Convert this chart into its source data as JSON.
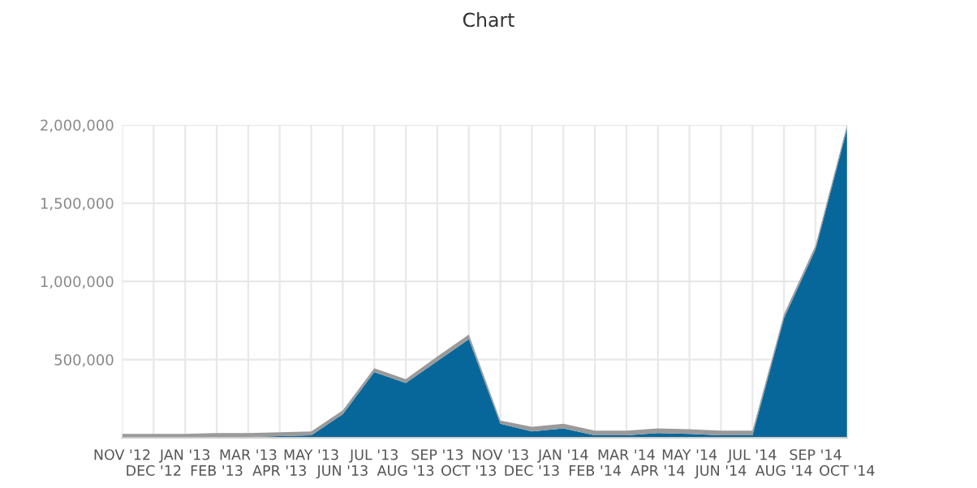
{
  "chart_data": {
    "type": "area",
    "title": "Chart",
    "stacked": true,
    "categories": [
      "NOV '12",
      "DEC '12",
      "JAN '13",
      "FEB '13",
      "MAR '13",
      "APR '13",
      "MAY '13",
      "JUN '13",
      "JUL '13",
      "AUG '13",
      "SEP '13",
      "OCT '13",
      "NOV '13",
      "DEC '13",
      "JAN '14",
      "FEB '14",
      "MAR '14",
      "APR '14",
      "MAY '14",
      "JUN '14",
      "JUL '14",
      "AUG '14",
      "SEP '14",
      "OCT '14"
    ],
    "series": [
      {
        "color": "#08679a",
        "values": [
          0,
          0,
          5000,
          5000,
          5000,
          10000,
          15000,
          150000,
          420000,
          350000,
          490000,
          630000,
          90000,
          40000,
          60000,
          15000,
          15000,
          30000,
          25000,
          15000,
          15000,
          765000,
          1205000,
          1975000
        ]
      },
      {
        "color": "#9a9a9a",
        "values": [
          25000,
          25000,
          20000,
          25000,
          25000,
          25000,
          25000,
          25000,
          25000,
          25000,
          30000,
          30000,
          20000,
          30000,
          30000,
          30000,
          30000,
          30000,
          30000,
          30000,
          30000,
          25000,
          25000,
          25000
        ]
      }
    ],
    "ylim": [
      0,
      2000000
    ],
    "yticks": [
      {
        "value": 0,
        "label": null
      },
      {
        "value": 500000,
        "label": "500,000"
      },
      {
        "value": 1000000,
        "label": "1,000,000"
      },
      {
        "value": 1500000,
        "label": "1,500,000"
      },
      {
        "value": 2000000,
        "label": "2,000,000"
      }
    ],
    "grid": true,
    "legend": false
  }
}
